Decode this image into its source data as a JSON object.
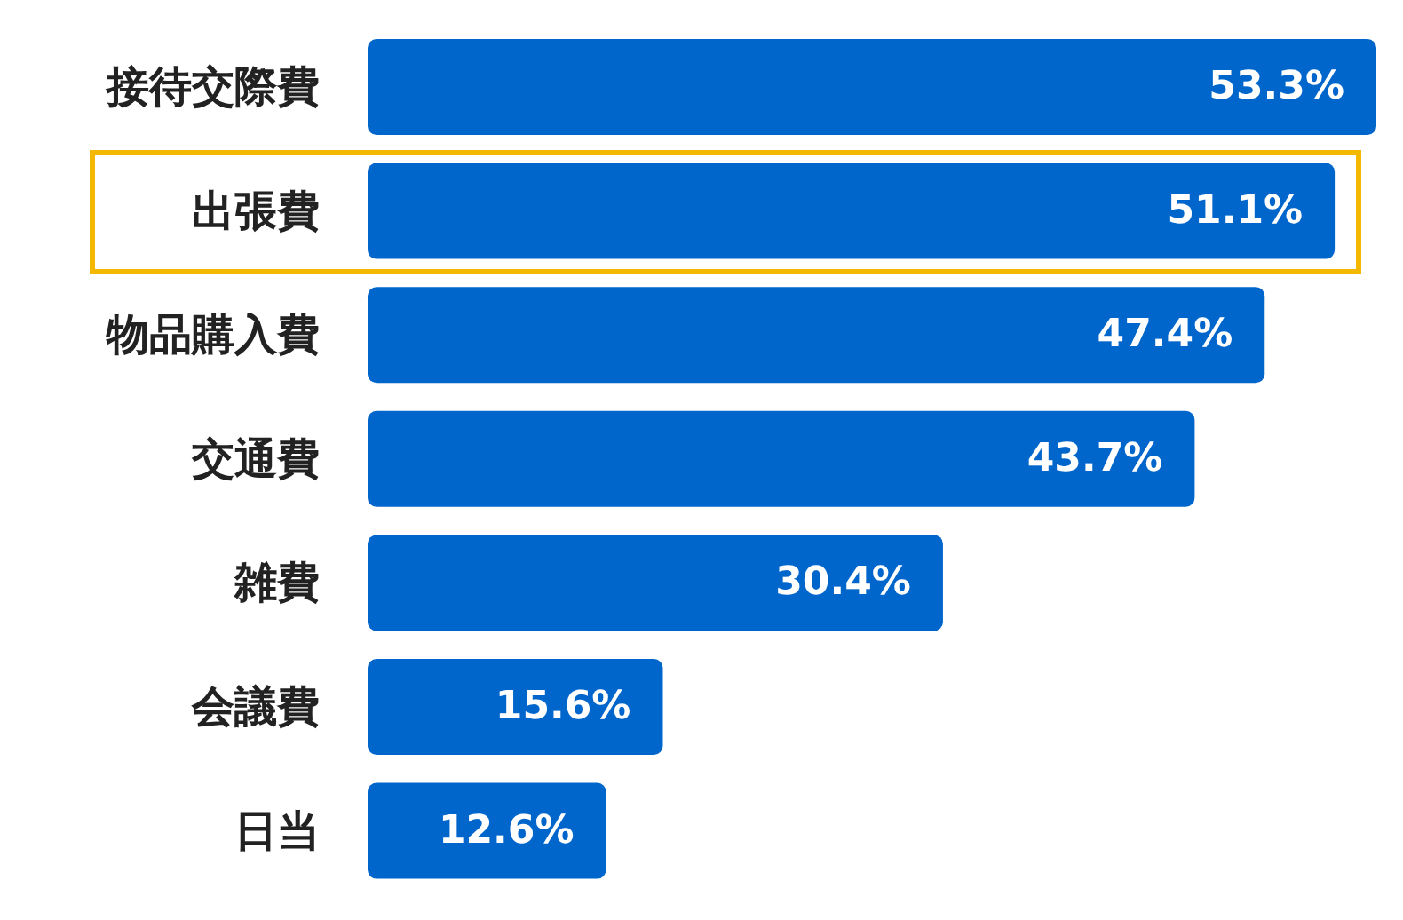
{
  "chart_data": {
    "type": "bar",
    "orientation": "horizontal",
    "categories": [
      "接待交際費",
      "出張費",
      "物品購入費",
      "交通費",
      "雑費",
      "会議費",
      "日当"
    ],
    "values": [
      53.3,
      51.1,
      47.4,
      43.7,
      30.4,
      15.6,
      12.6
    ],
    "value_labels": [
      "53.3%",
      "51.1%",
      "47.4%",
      "43.7%",
      "30.4%",
      "15.6%",
      "12.6%"
    ],
    "color": "#0066cc"
  }
}
